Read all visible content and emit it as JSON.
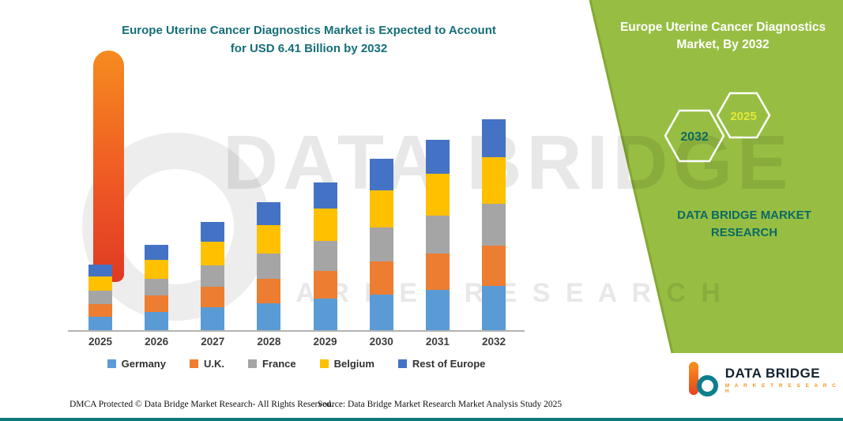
{
  "header": {
    "title_line1": "Europe Uterine Cancer Diagnostics Market is Expected to Account",
    "title_line2": "for USD 6.41 Billion by 2032"
  },
  "side_panel": {
    "heading_line1": "Europe Uterine Cancer Diagnostics",
    "heading_line2": "Market, By 2032",
    "hexagons": [
      {
        "label": "2032",
        "label_color": "#0d6a63"
      },
      {
        "label": "2025",
        "label_color": "#e4e838"
      }
    ],
    "brand_line1": "DATA BRIDGE MARKET",
    "brand_line2": "RESEARCH"
  },
  "watermark": {
    "line1": "DATA BRIDGE",
    "line2": "M A R K E T   R E S E A R C H"
  },
  "colors": {
    "panel_green": "#97be43",
    "panel_edge": "#83a934",
    "title_teal": "#156e78",
    "bottom_line_teal": "#0c7a77"
  },
  "chart_data": {
    "type": "bar",
    "stacked": true,
    "title": "Europe Uterine Cancer Diagnostics Market is Expected to Account for USD 6.41 Billion by 2032",
    "unit": "USD Billion",
    "categories": [
      "2025",
      "2026",
      "2027",
      "2028",
      "2029",
      "2030",
      "2031",
      "2032"
    ],
    "series": [
      {
        "name": "Germany",
        "color": "#5B9BD5",
        "values": [
          0.42,
          0.55,
          0.69,
          0.82,
          0.95,
          1.09,
          1.22,
          1.35
        ]
      },
      {
        "name": "U.K.",
        "color": "#ED7D31",
        "values": [
          0.38,
          0.5,
          0.63,
          0.74,
          0.86,
          0.99,
          1.1,
          1.22
        ]
      },
      {
        "name": "France",
        "color": "#A5A5A5",
        "values": [
          0.4,
          0.52,
          0.66,
          0.78,
          0.9,
          1.04,
          1.16,
          1.28
        ]
      },
      {
        "name": "Belgium",
        "color": "#FFC000",
        "values": [
          0.44,
          0.57,
          0.72,
          0.86,
          0.99,
          1.14,
          1.28,
          1.41
        ]
      },
      {
        "name": "Rest of Europe",
        "color": "#4472C4",
        "values": [
          0.36,
          0.46,
          0.6,
          0.7,
          0.8,
          0.94,
          1.04,
          1.15
        ]
      }
    ],
    "totals_usd_billion_est": [
      2.0,
      2.6,
      3.3,
      3.9,
      4.5,
      5.2,
      5.8,
      6.41
    ],
    "ylim": [
      0,
      7
    ],
    "grid": false,
    "legend_position": "bottom"
  },
  "footer": {
    "dmca": "DMCA Protected © Data Bridge Market Research-  All Rights Reserved.",
    "source": "Source: Data Bridge Market Research  Market Analysis Study 2025"
  },
  "logo": {
    "name_line": "DATA BRIDGE",
    "sub_line": "M A R K E T   R E S E A R C H"
  }
}
